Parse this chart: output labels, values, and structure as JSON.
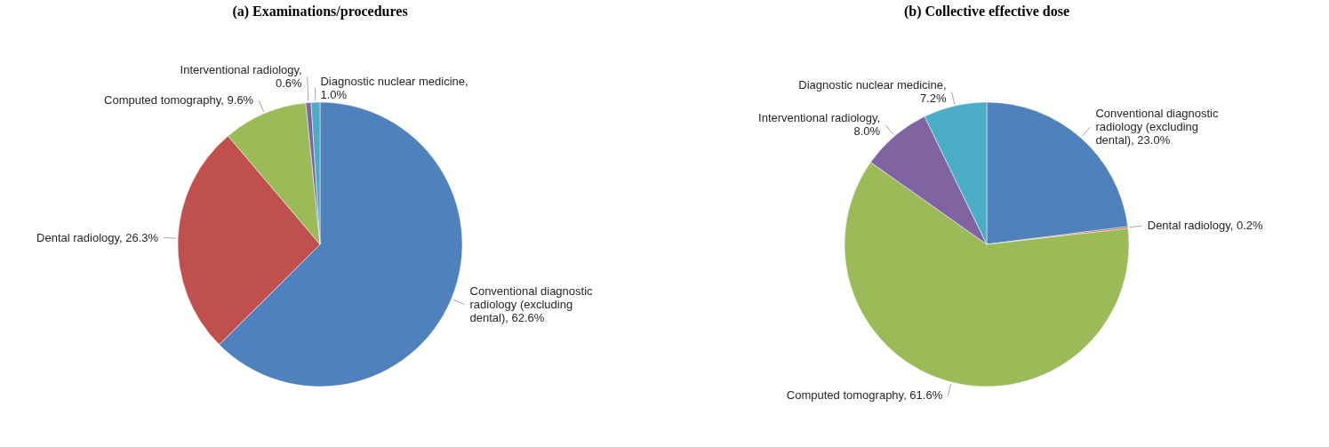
{
  "chart_data": [
    {
      "type": "pie",
      "title": "(a) Examinations/procedures",
      "categories": [
        "Conventional diagnostic radiology (excluding dental), 62.6%",
        "Dental radiology, 26.3%",
        "Computed tomography, 9.6%",
        "Interventional radiology, 0.6%",
        "Diagnostic nuclear medicine, 1.0%"
      ],
      "values": [
        62.6,
        26.3,
        9.6,
        0.6,
        1.0
      ],
      "colors": [
        "#4f81bd",
        "#c0504d",
        "#9bbb59",
        "#8064a2",
        "#4bacc6"
      ]
    },
    {
      "type": "pie",
      "title": "(b) Collective effective dose",
      "categories": [
        "Conventional diagnostic radiology (excluding dental), 23.0%",
        "Dental radiology, 0.2%",
        "Computed tomography, 61.6%",
        "Interventional radiology, 8.0%",
        "Diagnostic nuclear medicine, 7.2%"
      ],
      "values": [
        23.0,
        0.2,
        61.6,
        8.0,
        7.2
      ],
      "colors": [
        "#4f81bd",
        "#c0504d",
        "#9bbb59",
        "#8064a2",
        "#4bacc6"
      ]
    }
  ]
}
